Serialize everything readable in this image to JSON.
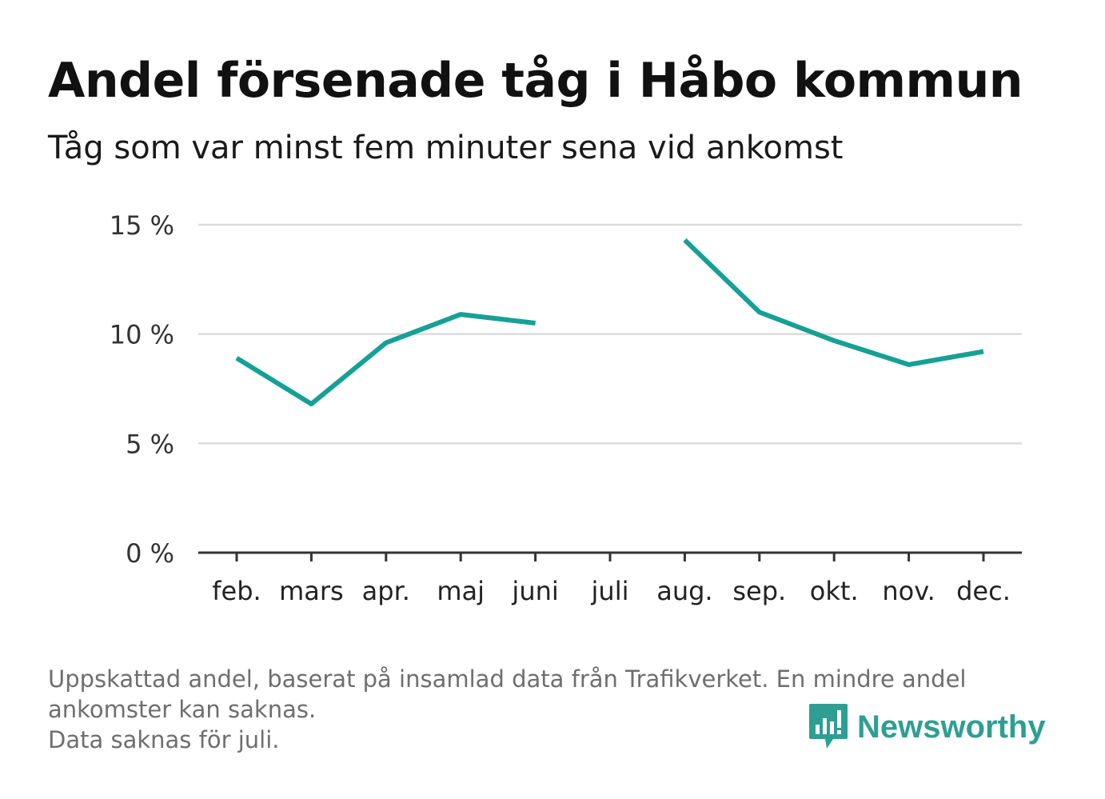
{
  "title": "Andel försenade tåg i Håbo kommun",
  "subtitle": "Tåg som var minst fem minuter sena vid ankomst",
  "footnote": {
    "line1": "Uppskattad andel, baserat på insamlad data från Trafikverket. En mindre andel",
    "line2": "ankomster kan saknas.",
    "line3": "Data saknas för juli."
  },
  "logo": {
    "text": "Newsworthy",
    "icon": "newsworthy-bars-icon",
    "color": "#2f9e92"
  },
  "chart_data": {
    "type": "line",
    "title": "Andel försenade tåg i Håbo kommun",
    "subtitle": "Tåg som var minst fem minuter sena vid ankomst",
    "categories": [
      "feb.",
      "mars",
      "apr.",
      "maj",
      "juni",
      "juli",
      "aug.",
      "sep.",
      "okt.",
      "nov.",
      "dec."
    ],
    "series": [
      {
        "values": [
          8.9,
          6.8,
          9.6,
          10.9,
          10.5,
          null,
          14.3,
          11.0,
          9.7,
          8.6,
          9.2
        ],
        "color": "#16a096"
      }
    ],
    "ylim": [
      0,
      15
    ],
    "yticks": [
      0,
      5,
      10,
      15
    ],
    "ytick_labels": [
      "0 %",
      "5 %",
      "10 %",
      "15 %"
    ],
    "grid": true,
    "legend": "none"
  }
}
